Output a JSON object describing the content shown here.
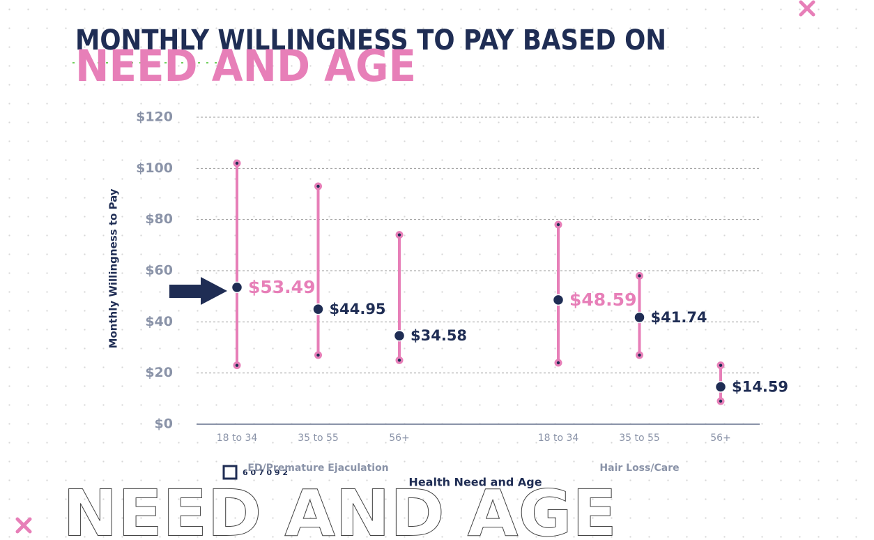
{
  "chart_data": {
    "type": "range",
    "title": "MONTHLY WILLINGNESS TO PAY BASED ON",
    "subtitle": "NEED AND AGE",
    "background_text": "NEED AND AGE",
    "code": "6 0 7 0 9 2",
    "y_label": "Monthly Willingness to Pay",
    "x_label": "Health Need and Age",
    "ylim": [
      0,
      120
    ],
    "yticks": [
      {
        "value": 0,
        "label": "$0"
      },
      {
        "value": 20,
        "label": "$20"
      },
      {
        "value": 40,
        "label": "$40"
      },
      {
        "value": 60,
        "label": "$60"
      },
      {
        "value": 80,
        "label": "$80"
      },
      {
        "value": 100,
        "label": "$100"
      },
      {
        "value": 120,
        "label": "$120"
      }
    ],
    "grid": true,
    "range_color": "#e77fb8",
    "dot_color": "#1f2d54",
    "groups": [
      {
        "name": "ED/Premature Ejaculation",
        "categories": [
          "18 to 34",
          "35 to 55",
          "56+"
        ],
        "values": [
          53.49,
          44.95,
          34.58
        ],
        "value_labels": [
          "$53.49",
          "$44.95",
          "$34.58"
        ],
        "value_label_colors": [
          "#e77fb8",
          "#1f2d54",
          "#1f2d54"
        ],
        "low": [
          23,
          27,
          25
        ],
        "high": [
          102,
          93,
          74
        ]
      },
      {
        "name": "Hair Loss/Care",
        "categories": [
          "18 to 34",
          "35 to 55",
          "56+"
        ],
        "values": [
          48.59,
          41.74,
          14.59
        ],
        "value_labels": [
          "$48.59",
          "$41.74",
          "$14.59"
        ],
        "value_label_colors": [
          "#e77fb8",
          "#1f2d54",
          "#1f2d54"
        ],
        "low": [
          24,
          27,
          9
        ],
        "high": [
          78,
          58,
          23
        ]
      }
    ]
  }
}
